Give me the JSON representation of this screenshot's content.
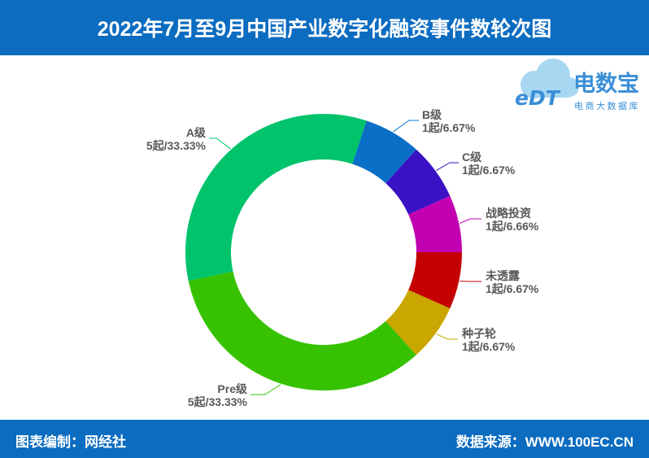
{
  "colors": {
    "header_bg": "#0b6cc0",
    "footer_bg": "#0b6cc0",
    "header_text": "#ffffff",
    "label_text": "#595959",
    "logo_cloud": "#a8d7f2",
    "logo_blue": "#3a8ed6"
  },
  "logo": {
    "wordmark_en": "eDT",
    "wordmark_cn": "电数宝",
    "tagline": "电商大数据库"
  },
  "footer": {
    "compiler": "图表编制：网经社",
    "source": "数据来源：WWW.100EC.CN"
  },
  "chart_data": {
    "type": "pie",
    "donut": true,
    "title": "2022年7月至9月中国产业数字化融资事件数轮次图",
    "categories": [
      "B级",
      "C级",
      "战略投资",
      "未透露",
      "种子轮",
      "Pre级",
      "A级"
    ],
    "values": [
      1,
      1,
      1,
      1,
      1,
      5,
      5
    ],
    "percentages": [
      6.67,
      6.67,
      6.66,
      6.67,
      6.67,
      33.33,
      33.33
    ],
    "data_labels": [
      "1起/6.67%",
      "1起/6.67%",
      "1起/6.66%",
      "1起/6.67%",
      "1起/6.67%",
      "5起/33.33%",
      "5起/33.33%"
    ],
    "colors": [
      "#0a6fc6",
      "#3a12c4",
      "#c200b1",
      "#c40000",
      "#c9a600",
      "#36c200",
      "#00c36c"
    ]
  }
}
